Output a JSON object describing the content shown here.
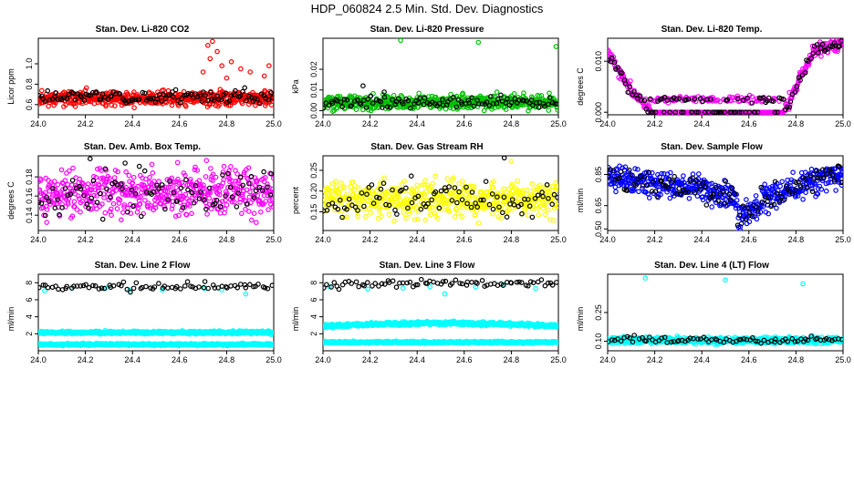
{
  "page": {
    "title": "HDP_060824  2.5 Min. Std. Dev. Diagnostics"
  },
  "colors": {
    "red": "#ff0000",
    "green": "#00c000",
    "magenta": "#ff00ff",
    "yellow": "#ffff00",
    "blue": "#0000ff",
    "cyan": "#00ffff",
    "black": "#000000"
  },
  "chart_data": [
    {
      "id": "co2",
      "type": "scatter",
      "title": "Stan. Dev. Li-820 CO2",
      "ylabel": "Licor ppm",
      "xlabel": "",
      "xlim": [
        24.0,
        25.0
      ],
      "ylim": [
        0.5,
        1.25
      ],
      "xticks": [
        24.0,
        24.2,
        24.4,
        24.6,
        24.8,
        25.0
      ],
      "xtick_labels": [
        "24.0",
        "24.2",
        "24.4",
        "24.6",
        "24.8",
        "25.0"
      ],
      "yticks": [
        0.6,
        0.8,
        1.0
      ],
      "ytick_labels": [
        "0.6",
        "0.8",
        "1.0"
      ],
      "series": [
        {
          "name": "primary",
          "color": "#ff0000",
          "n": 560,
          "base": 0.66,
          "spread": 0.05,
          "seed": 11,
          "spikes": [
            [
              24.72,
              1.18
            ],
            [
              24.74,
              1.22
            ],
            [
              24.76,
              1.12
            ],
            [
              24.73,
              1.05
            ],
            [
              24.78,
              0.98
            ],
            [
              24.82,
              1.02
            ],
            [
              24.86,
              0.95
            ],
            [
              24.9,
              0.92
            ],
            [
              24.96,
              0.88
            ],
            [
              24.98,
              0.98
            ],
            [
              24.7,
              0.92
            ],
            [
              24.8,
              0.86
            ]
          ]
        },
        {
          "name": "secondary",
          "color": "#000000",
          "n": 110,
          "base": 0.68,
          "spread": 0.05,
          "seed": 23,
          "spikes": []
        }
      ]
    },
    {
      "id": "pressure",
      "type": "scatter",
      "title": "Stan. Dev. Li-820 Pressure",
      "ylabel": "kPa",
      "xlabel": "",
      "xlim": [
        24.0,
        25.0
      ],
      "ylim": [
        -0.002,
        0.035
      ],
      "xticks": [
        24.0,
        24.2,
        24.4,
        24.6,
        24.8,
        25.0
      ],
      "xtick_labels": [
        "24.0",
        "24.2",
        "24.4",
        "24.6",
        "24.8",
        "25.0"
      ],
      "yticks": [
        0.0,
        0.01,
        0.02
      ],
      "ytick_labels": [
        "0.00",
        "0.01",
        "0.02"
      ],
      "series": [
        {
          "name": "primary",
          "color": "#00c000",
          "n": 560,
          "base": 0.004,
          "spread": 0.0025,
          "seed": 31,
          "spikes": [
            [
              24.33,
              0.034
            ],
            [
              24.66,
              0.033
            ],
            [
              24.99,
              0.031
            ]
          ]
        },
        {
          "name": "secondary",
          "color": "#000000",
          "n": 100,
          "base": 0.004,
          "spread": 0.002,
          "seed": 37,
          "spikes": [
            [
              24.17,
              0.012
            ],
            [
              24.26,
              0.009
            ]
          ]
        }
      ]
    },
    {
      "id": "temp",
      "type": "scatter",
      "title": "Stan. Dev. Li-820 Temp.",
      "ylabel": "degrees C",
      "xlabel": "",
      "xlim": [
        24.0,
        25.0
      ],
      "ylim": [
        -0.0005,
        0.0145
      ],
      "xticks": [
        24.0,
        24.2,
        24.4,
        24.6,
        24.8,
        25.0
      ],
      "xtick_labels": [
        "24.0",
        "24.2",
        "24.4",
        "24.6",
        "24.8",
        "25.0"
      ],
      "yticks": [
        0.0,
        0.01
      ],
      "ytick_labels": [
        "0.000",
        "0.010"
      ],
      "series": [
        {
          "name": "primary",
          "color": "#ff00ff",
          "n": 460,
          "profile": "temp",
          "seed": 41,
          "spikes": []
        },
        {
          "name": "secondary",
          "color": "#000000",
          "n": 120,
          "profile": "temp",
          "seed": 43,
          "spikes": []
        }
      ]
    },
    {
      "id": "ambbox",
      "type": "scatter",
      "title": "Stan. Dev. Amb. Box Temp.",
      "ylabel": "degrees C",
      "xlabel": "",
      "xlim": [
        24.0,
        25.0
      ],
      "ylim": [
        0.124,
        0.202
      ],
      "xticks": [
        24.0,
        24.2,
        24.4,
        24.6,
        24.8,
        25.0
      ],
      "xtick_labels": [
        "24.0",
        "24.2",
        "24.4",
        "24.6",
        "24.8",
        "25.0"
      ],
      "yticks": [
        0.14,
        0.16,
        0.18
      ],
      "ytick_labels": [
        "0.14",
        "0.16",
        "0.18"
      ],
      "series": [
        {
          "name": "primary",
          "color": "#ff00ff",
          "n": 520,
          "base": 0.163,
          "spread": 0.017,
          "seed": 51,
          "spikes": []
        },
        {
          "name": "secondary",
          "color": "#000000",
          "n": 90,
          "base": 0.163,
          "spread": 0.017,
          "seed": 53,
          "spikes": [
            [
              24.22,
              0.199
            ]
          ]
        }
      ]
    },
    {
      "id": "rh",
      "type": "scatter",
      "title": "Stan. Dev. Gas Stream RH",
      "ylabel": "percent",
      "xlabel": "",
      "xlim": [
        24.0,
        25.0
      ],
      "ylim": [
        0.105,
        0.285
      ],
      "xticks": [
        24.0,
        24.2,
        24.4,
        24.6,
        24.8,
        25.0
      ],
      "xtick_labels": [
        "24.0",
        "24.2",
        "24.4",
        "24.6",
        "24.8",
        "25.0"
      ],
      "yticks": [
        0.15,
        0.2,
        0.25
      ],
      "ytick_labels": [
        "0.15",
        "0.20",
        "0.25"
      ],
      "series": [
        {
          "name": "primary",
          "color": "#ffff00",
          "n": 520,
          "base": 0.18,
          "spread": 0.03,
          "seed": 61,
          "spikes": [
            [
              24.8,
              0.272
            ]
          ]
        },
        {
          "name": "secondary",
          "color": "#000000",
          "n": 90,
          "base": 0.18,
          "spread": 0.03,
          "seed": 67,
          "spikes": [
            [
              24.77,
              0.28
            ]
          ]
        }
      ]
    },
    {
      "id": "flow",
      "type": "scatter",
      "title": "Stan. Dev. Sample Flow",
      "ylabel": "ml/min",
      "xlabel": "",
      "xlim": [
        24.0,
        25.0
      ],
      "ylim": [
        0.49,
        0.97
      ],
      "xticks": [
        24.0,
        24.2,
        24.4,
        24.6,
        24.8,
        25.0
      ],
      "xtick_labels": [
        "24.0",
        "24.2",
        "24.4",
        "24.6",
        "24.8",
        "25.0"
      ],
      "yticks": [
        0.5,
        0.65,
        0.85
      ],
      "ytick_labels": [
        "0.50",
        "0.65",
        "0.85"
      ],
      "series": [
        {
          "name": "primary",
          "color": "#0000ff",
          "n": 520,
          "profile": "flow",
          "seed": 71,
          "spikes": []
        },
        {
          "name": "secondary",
          "color": "#000000",
          "n": 110,
          "profile": "flow",
          "seed": 73,
          "spikes": []
        }
      ]
    },
    {
      "id": "line2",
      "type": "scatter",
      "title": "Stan. Dev. Line 2 Flow",
      "ylabel": "ml/min",
      "xlabel": "",
      "xlim": [
        24.0,
        25.0
      ],
      "ylim": [
        0.0,
        9.0
      ],
      "xticks": [
        24.0,
        24.2,
        24.4,
        24.6,
        24.8,
        25.0
      ],
      "xtick_labels": [
        "24.0",
        "24.2",
        "24.4",
        "24.6",
        "24.8",
        "25.0"
      ],
      "yticks": [
        2,
        4,
        6,
        8
      ],
      "ytick_labels": [
        "2",
        "4",
        "6",
        "8"
      ],
      "series": [
        {
          "name": "band-high",
          "color": "#00ffff",
          "n": 600,
          "base": 2.15,
          "spread": 0.12,
          "seed": 81,
          "spikes": []
        },
        {
          "name": "band-low",
          "color": "#00ffff",
          "n": 600,
          "base": 0.75,
          "spread": 0.08,
          "seed": 83,
          "spikes": []
        },
        {
          "name": "top-cyan",
          "color": "#00ffff",
          "n": 8,
          "base": 7.1,
          "spread": 0.3,
          "seed": 85,
          "spikes": []
        },
        {
          "name": "top-black",
          "color": "#000000",
          "n": 75,
          "base": 7.5,
          "spread": 0.35,
          "seed": 87,
          "spikes": []
        }
      ]
    },
    {
      "id": "line3",
      "type": "scatter",
      "title": "Stan. Dev. Line 3 Flow",
      "ylabel": "ml/min",
      "xlabel": "",
      "xlim": [
        24.0,
        25.0
      ],
      "ylim": [
        0.0,
        9.0
      ],
      "xticks": [
        24.0,
        24.2,
        24.4,
        24.6,
        24.8,
        25.0
      ],
      "xtick_labels": [
        "24.0",
        "24.2",
        "24.4",
        "24.6",
        "24.8",
        "25.0"
      ],
      "yticks": [
        2,
        4,
        6,
        8
      ],
      "ytick_labels": [
        "2",
        "4",
        "6",
        "8"
      ],
      "series": [
        {
          "name": "band-high",
          "color": "#00ffff",
          "n": 600,
          "profile": "line3high",
          "spread": 0.14,
          "seed": 91,
          "spikes": []
        },
        {
          "name": "band-low",
          "color": "#00ffff",
          "n": 600,
          "base": 1.0,
          "spread": 0.08,
          "seed": 93,
          "spikes": []
        },
        {
          "name": "top-cyan",
          "color": "#00ffff",
          "n": 8,
          "base": 7.3,
          "spread": 0.3,
          "seed": 95,
          "spikes": []
        },
        {
          "name": "top-black",
          "color": "#000000",
          "n": 75,
          "base": 7.9,
          "spread": 0.3,
          "seed": 97,
          "spikes": []
        }
      ]
    },
    {
      "id": "line4",
      "type": "scatter",
      "title": "Stan. Dev. Line 4 (LT) Flow",
      "ylabel": "ml/min",
      "xlabel": "",
      "xlim": [
        24.0,
        25.0
      ],
      "ylim": [
        0.05,
        0.45
      ],
      "xticks": [
        24.0,
        24.2,
        24.4,
        24.6,
        24.8,
        25.0
      ],
      "xtick_labels": [
        "24.0",
        "24.2",
        "24.4",
        "24.6",
        "24.8",
        "25.0"
      ],
      "yticks": [
        0.1,
        0.25
      ],
      "ytick_labels": [
        "0.10",
        "0.25"
      ],
      "series": [
        {
          "name": "primary",
          "color": "#00ffff",
          "n": 560,
          "base": 0.105,
          "spread": 0.012,
          "seed": 101,
          "spikes": [
            [
              24.16,
              0.43
            ],
            [
              24.5,
              0.42
            ],
            [
              24.83,
              0.4
            ]
          ]
        },
        {
          "name": "secondary",
          "color": "#000000",
          "n": 80,
          "base": 0.105,
          "spread": 0.012,
          "seed": 103,
          "spikes": []
        }
      ]
    }
  ]
}
